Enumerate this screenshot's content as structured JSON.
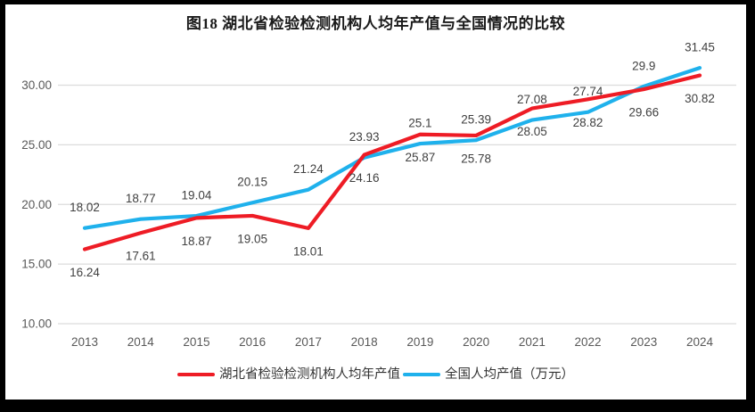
{
  "chart_data": {
    "type": "line",
    "title": "图18  湖北省检验检测机构人均年产值与全国情况的比较",
    "categories": [
      "2013",
      "2014",
      "2015",
      "2016",
      "2017",
      "2018",
      "2019",
      "2020",
      "2021",
      "2022",
      "2023",
      "2024"
    ],
    "series": [
      {
        "name": "湖北省检验检测机构人均年产值",
        "color": "#ee1c25",
        "values": [
          16.24,
          17.61,
          18.87,
          19.05,
          18.01,
          24.16,
          25.87,
          25.78,
          28.05,
          28.82,
          29.66,
          30.82
        ],
        "labels": [
          "16.24",
          "17.61",
          "18.87",
          "19.05",
          "18.01",
          "24.16",
          "25.87",
          "25.78",
          "28.05",
          "28.82",
          "29.66",
          "30.82"
        ],
        "label_position": "below"
      },
      {
        "name": "全国人均产值（万元）",
        "color": "#1fb1ec",
        "values": [
          18.02,
          18.77,
          19.04,
          20.15,
          21.24,
          23.93,
          25.1,
          25.39,
          27.08,
          27.74,
          29.9,
          31.45
        ],
        "labels": [
          "18.02",
          "18.77",
          "19.04",
          "20.15",
          "21.24",
          "23.93",
          "25.1",
          "25.39",
          "27.08",
          "27.74",
          "29.9",
          "31.45"
        ],
        "label_position": "above"
      }
    ],
    "yticks": [
      "10.00",
      "15.00",
      "20.00",
      "25.00",
      "30.00"
    ],
    "ylim": [
      10,
      32.5
    ],
    "xlabel": "",
    "ylabel": "",
    "grid": true,
    "legend_position": "bottom",
    "colors": {
      "grid": "#dcdcdc",
      "axis_text": "#595959",
      "data_label_text": "#404040",
      "title_text": "#1a1a1a",
      "background": "#ffffff",
      "frame": "#000000"
    }
  }
}
